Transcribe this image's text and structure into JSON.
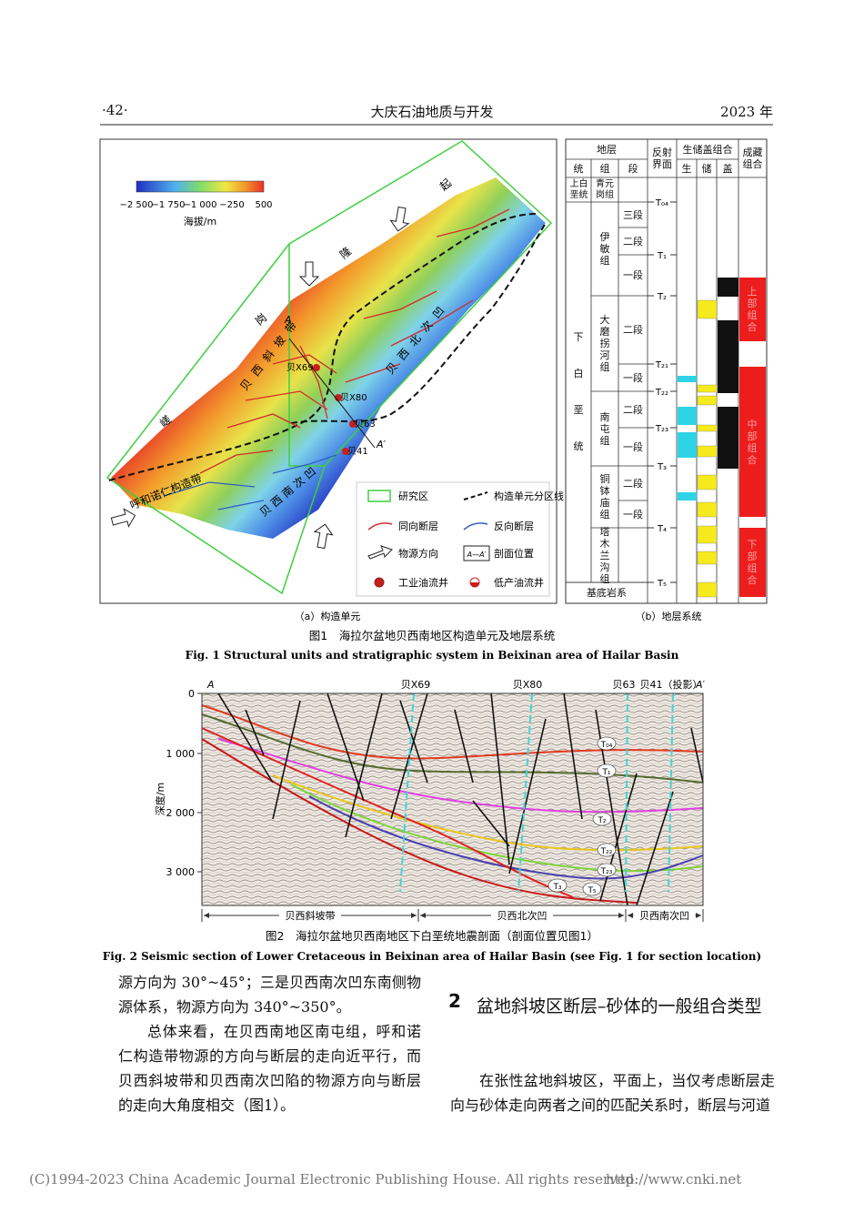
{
  "header": {
    "page": "·42·",
    "journal": "大庆石油地质与开发",
    "year": "2023 年"
  },
  "figure1": {
    "map": {
      "colorbar": {
        "ticks": [
          "−2 500",
          "−1 750",
          "−1 000",
          "−250",
          "500"
        ],
        "label": "海拔/m"
      },
      "labels": [
        "嵯",
        "岗",
        "隆",
        "起",
        "贝西斜坡带",
        "贝西北次凹",
        "贝西南次凹",
        "呼和诺仁构造带"
      ],
      "wells": [
        "贝X69",
        "贝X80",
        "贝63",
        "贝41"
      ],
      "section": [
        "A",
        "A′"
      ],
      "legend": [
        "研究区",
        "构造单元分区线",
        "同向断层",
        "反向断层",
        "物源方向",
        "剖面位置",
        "工业油流井",
        "低产油流井"
      ],
      "legend_section": "A—A′",
      "caption": "（a）构造单元"
    },
    "strat": {
      "header": {
        "strata": "地层",
        "series": "统",
        "formation": "组",
        "member": "段",
        "reflector": "反射界面",
        "combo": "生储盖组合",
        "source": "生",
        "reservoir": "储",
        "seal": "盖",
        "accumulation": "成藏组合"
      },
      "series": [
        "上白垩统",
        "下白垩统"
      ],
      "formations": [
        "青元岗组",
        "伊敏组",
        "大磨拐河组",
        "南屯组",
        "铜钵庙组",
        "塔木兰沟组"
      ],
      "members": [
        "三段",
        "二段",
        "一段",
        "二段",
        "一段",
        "二段",
        "一段",
        "二段",
        "一段"
      ],
      "reflectors": [
        "T₀₄",
        "T₁",
        "T₂",
        "T₂₁",
        "T₂₂",
        "T₂₃",
        "T₃",
        "T₄",
        "T₅"
      ],
      "basement": "基底岩系",
      "combos": [
        "上部组合",
        "中部组合",
        "下部组合"
      ],
      "caption": "（b）地层系统"
    },
    "caption_cn": "图1　海拉尔盆地贝西南地区构造单元及地层系统",
    "caption_en": "Fig. 1  Structural units and stratigraphic system in Beixinan area of Hailar Basin"
  },
  "figure2": {
    "top_labels": [
      "A",
      "贝X69",
      "贝X80",
      "贝63",
      "贝41（投影）",
      "A′"
    ],
    "axis_label": "深度/m",
    "ticks": [
      "0",
      "1 000",
      "2 000",
      "3 000"
    ],
    "horizons": [
      "T₀₄",
      "T₁",
      "T₂",
      "T₂₂",
      "T₂₃",
      "T₃",
      "T₅"
    ],
    "zones": [
      "贝西斜坡带",
      "贝西北次凹",
      "贝西南次凹"
    ],
    "caption_cn": "图2　海拉尔盆地贝西南地区下白垩统地震剖面（剖面位置见图1）",
    "caption_en": "Fig. 2  Seismic section of Lower Cretaceous in Beixinan area of Hailar Basin (see Fig. 1 for section location)"
  },
  "body": {
    "left": [
      "源方向为 30°~45°；三是贝西南次凹东南侧物源体系，物源方向为 340°~350°。",
      "总体来看，在贝西南地区南屯组，呼和诺仁构造带物源的方向与断层的走向近平行，而贝西斜坡带和贝西南次凹陷的物源方向与断层的走向大角度相交（图1）。"
    ],
    "heading_number": "2",
    "heading": "盆地斜坡区断层–砂体的一般组合类型",
    "right": [
      "在张性盆地斜坡区，平面上，当仅考虑断层走向与砂体走向两者之间的匹配关系时，断层与河道"
    ]
  },
  "footer": {
    "copyright": "(C)1994-2023 China Academic Journal Electronic Publishing House. All rights reserved.",
    "url": "http://www.cnki.net"
  }
}
